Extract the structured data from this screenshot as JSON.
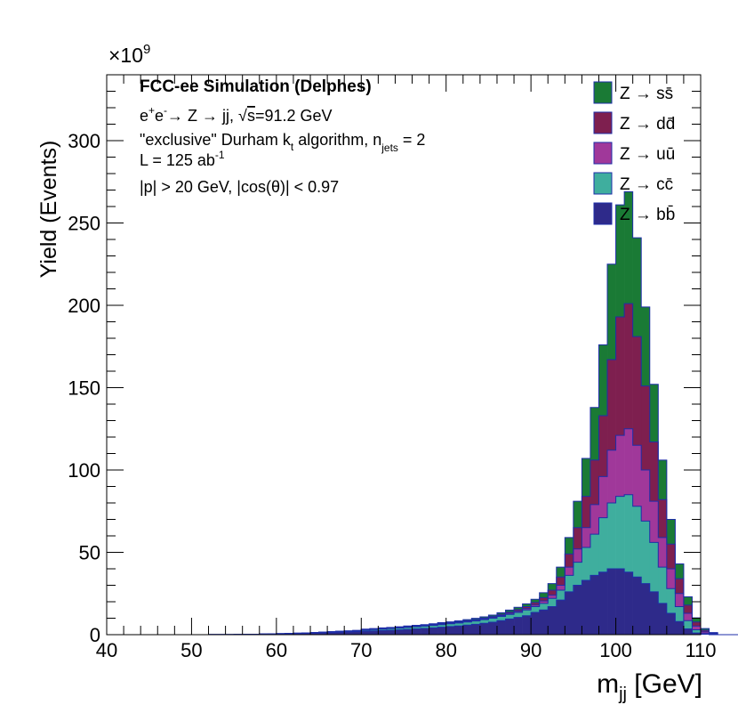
{
  "chart_data": {
    "type": "bar",
    "stacked": true,
    "histogram": true,
    "title": "FCC-ee Simulation (Delphes)",
    "xlabel": "m",
    "xlabel_sub": "jj",
    "xlabel_unit": " [GeV]",
    "ylabel": "Yield (Events)",
    "y_multiplier": "×10",
    "y_multiplier_exp": "9",
    "xlim": [
      40,
      110
    ],
    "ylim": [
      0,
      340
    ],
    "x_ticks": [
      40,
      50,
      60,
      70,
      80,
      90,
      100,
      110
    ],
    "y_ticks": [
      0,
      50,
      100,
      150,
      200,
      250,
      300
    ],
    "bin_width": 1,
    "bin_start": 40,
    "grid": false,
    "legend_position": "top-right",
    "annotations": {
      "process_a": "e",
      "process_sup1": "+",
      "process_e": "e",
      "process_sup2": "-",
      "process_b": "→ Z → jj, ",
      "process_sqrt": "√",
      "process_s": "s",
      "process_c": "=91.2 GeV",
      "algo_a": "\"exclusive\" Durham k",
      "algo_sub1": "t",
      "algo_b": " algorithm, n",
      "algo_sub2": "jets",
      "algo_c": " = 2",
      "lumi_a": "L = 125 ab",
      "lumi_sup": "-1",
      "cuts": "|p| > 20 GeV, |cos(θ)| < 0.97"
    },
    "series": [
      {
        "name": "Z → bb̄",
        "q": "b",
        "color": "#2e2a8a",
        "values": [
          0,
          0,
          0,
          0,
          0,
          0,
          0,
          0,
          0,
          0,
          0,
          0,
          0.05,
          0.08,
          0.1,
          0.15,
          0.2,
          0.25,
          0.3,
          0.35,
          0.45,
          0.55,
          0.65,
          0.8,
          0.95,
          1.1,
          1.3,
          1.5,
          1.7,
          1.9,
          2.1,
          2.3,
          2.5,
          2.7,
          2.9,
          3.2,
          3.5,
          3.8,
          4.1,
          4.5,
          4.9,
          5.3,
          5.8,
          6.3,
          6.9,
          7.6,
          8.5,
          9.5,
          10.5,
          11.5,
          13.5,
          15,
          17,
          21,
          26,
          30,
          33,
          36,
          38,
          40,
          40,
          38,
          35,
          31,
          26,
          19,
          13,
          8,
          3.5,
          1,
          0.3,
          0,
          0,
          0,
          0,
          0,
          0,
          0,
          0,
          0
        ]
      },
      {
        "name": "Z → cc̄",
        "q": "c",
        "color": "#3fae9e",
        "values": [
          0,
          0,
          0,
          0,
          0,
          0,
          0,
          0,
          0,
          0,
          0,
          0,
          0,
          0,
          0,
          0,
          0,
          0.05,
          0.1,
          0.1,
          0.15,
          0.2,
          0.25,
          0.3,
          0.35,
          0.4,
          0.45,
          0.5,
          0.55,
          0.6,
          0.7,
          0.8,
          0.9,
          1,
          1.1,
          1.2,
          1.3,
          1.4,
          1.5,
          1.6,
          1.7,
          1.8,
          1.9,
          2,
          2.2,
          2.4,
          2.6,
          2.8,
          3,
          3.5,
          3.5,
          4,
          5,
          6,
          10,
          14,
          20,
          25,
          33,
          40,
          44,
          47,
          43,
          38,
          30,
          22,
          15,
          9,
          5,
          2,
          0.4,
          0.2,
          0,
          0,
          0,
          0,
          0,
          0,
          0,
          0
        ]
      },
      {
        "name": "Z → uū",
        "q": "u",
        "color": "#a0389a",
        "values": [
          0,
          0,
          0,
          0,
          0,
          0,
          0,
          0,
          0,
          0,
          0,
          0,
          0,
          0,
          0,
          0,
          0,
          0,
          0,
          0,
          0,
          0,
          0,
          0,
          0,
          0,
          0,
          0,
          0,
          0,
          0.2,
          0.2,
          0.2,
          0.2,
          0.2,
          0.2,
          0.2,
          0.2,
          0.3,
          0.3,
          0.3,
          0.3,
          0.3,
          0.4,
          0.4,
          0.4,
          0.5,
          0.6,
          0.7,
          0.8,
          1,
          1.5,
          2,
          3,
          5,
          8,
          12,
          18,
          25,
          32,
          37,
          40,
          37,
          31,
          25,
          18,
          12,
          8,
          4.5,
          2.2,
          1,
          0.3,
          0,
          0,
          0,
          0,
          0,
          0,
          0,
          0
        ]
      },
      {
        "name": "Z → dd̄",
        "q": "d",
        "color": "#7e1f4f",
        "values": [
          0,
          0,
          0,
          0,
          0,
          0,
          0,
          0,
          0,
          0,
          0,
          0,
          0,
          0,
          0,
          0,
          0,
          0,
          0,
          0,
          0,
          0,
          0,
          0,
          0,
          0,
          0,
          0,
          0,
          0,
          0.2,
          0.2,
          0.2,
          0.2,
          0.3,
          0.3,
          0.3,
          0.3,
          0.3,
          0.4,
          0.4,
          0.4,
          0.5,
          0.5,
          0.5,
          0.6,
          0.7,
          0.8,
          1,
          1.2,
          1.5,
          2,
          3,
          5,
          8,
          13,
          19,
          27,
          37,
          55,
          72,
          76,
          66,
          51,
          36,
          23,
          15,
          9,
          5,
          2.5,
          1,
          0.4,
          0,
          0,
          0,
          0,
          0,
          0,
          0,
          0
        ]
      },
      {
        "name": "Z → ss̄",
        "q": "s",
        "color": "#1a7a35",
        "values": [
          0,
          0,
          0,
          0,
          0,
          0,
          0,
          0,
          0,
          0,
          0,
          0,
          0,
          0,
          0,
          0,
          0,
          0,
          0,
          0,
          0,
          0,
          0,
          0,
          0,
          0,
          0,
          0,
          0,
          0,
          0.2,
          0.2,
          0.3,
          0.3,
          0.3,
          0.4,
          0.4,
          0.4,
          0.4,
          0.5,
          0.5,
          0.6,
          0.6,
          0.7,
          0.8,
          0.9,
          1,
          1.2,
          1.4,
          1.7,
          2,
          3,
          4,
          6,
          10,
          16,
          23,
          32,
          43,
          58,
          68,
          68,
          60,
          48,
          35,
          24,
          15,
          9,
          5,
          2.5,
          1,
          0.4,
          0,
          0,
          0,
          0,
          0,
          0,
          0,
          0
        ]
      }
    ]
  }
}
